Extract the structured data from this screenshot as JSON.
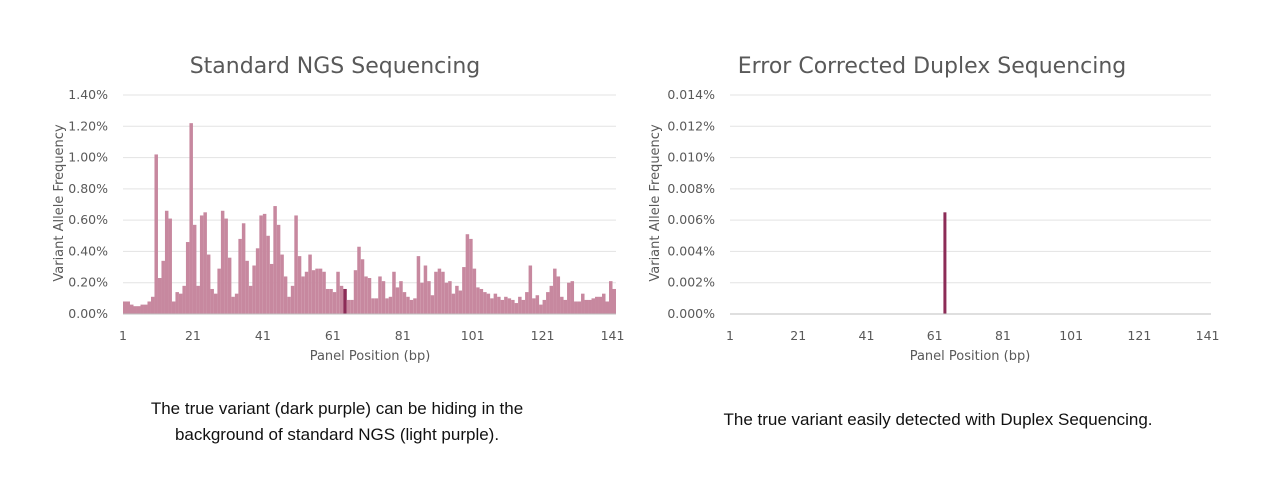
{
  "colors": {
    "background_bar": "#c7889f",
    "true_variant": "#8c2c57",
    "gridline": "#e3e3e3",
    "axis": "#bfbfbf",
    "text": "#595959"
  },
  "captions": {
    "left": [
      "The true variant (dark purple) can be hiding in the",
      "background of standard NGS (light purple)."
    ],
    "right": [
      "The true variant easily detected with Duplex Sequencing."
    ]
  },
  "chart_data": [
    {
      "type": "bar",
      "title": "Standard NGS Sequencing",
      "xlabel": "Panel Position (bp)",
      "ylabel": "Variant Allele Frequency",
      "ylim": [
        0,
        0.014
      ],
      "y_ticks": [
        "0.00%",
        "0.20%",
        "0.40%",
        "0.60%",
        "0.80%",
        "1.00%",
        "1.20%",
        "1.40%"
      ],
      "xlim": [
        1,
        141
      ],
      "x_ticks": [
        "1",
        "21",
        "41",
        "61",
        "81",
        "101",
        "121",
        "141"
      ],
      "grid": true,
      "true_variant_position": 64,
      "series": [
        {
          "x_start": 1,
          "values": [
            0.0008,
            0.0008,
            0.0006,
            0.0005,
            0.0005,
            0.0006,
            0.0006,
            0.0008,
            0.0011,
            0.0102,
            0.0023,
            0.0034,
            0.0066,
            0.0061,
            0.0008,
            0.0014,
            0.0013,
            0.0018,
            0.0046,
            0.0122,
            0.0057,
            0.0018,
            0.0063,
            0.0065,
            0.0038,
            0.0016,
            0.0013,
            0.0029,
            0.0066,
            0.0061,
            0.0036,
            0.0011,
            0.0013,
            0.0048,
            0.0058,
            0.0034,
            0.0018,
            0.0031,
            0.0042,
            0.0063,
            0.0064,
            0.005,
            0.0032,
            0.0069,
            0.0057,
            0.0038,
            0.0024,
            0.0011,
            0.0018,
            0.0063,
            0.0037,
            0.0024,
            0.0027,
            0.0038,
            0.0028,
            0.0029,
            0.0029,
            0.0027,
            0.0016,
            0.0016,
            0.0014,
            0.0027,
            0.0018,
            0.0016,
            0.0009,
            0.0009,
            0.0028,
            0.0043,
            0.0035,
            0.0024,
            0.0023,
            0.001,
            0.001,
            0.0024,
            0.0021,
            0.001,
            0.0011,
            0.0027,
            0.0017,
            0.0021,
            0.0014,
            0.0011,
            0.0009,
            0.001,
            0.0037,
            0.002,
            0.0031,
            0.0021,
            0.0012,
            0.0027,
            0.0029,
            0.0027,
            0.002,
            0.0021,
            0.0013,
            0.0018,
            0.0015,
            0.003,
            0.0051,
            0.0048,
            0.0029,
            0.0017,
            0.0016,
            0.0014,
            0.0013,
            0.001,
            0.0013,
            0.0011,
            0.0009,
            0.0011,
            0.001,
            0.0009,
            0.0007,
            0.0011,
            0.0009,
            0.0014,
            0.0031,
            0.001,
            0.0012,
            0.0006,
            0.0009,
            0.0014,
            0.0018,
            0.0029,
            0.0024,
            0.0011,
            0.0009,
            0.002,
            0.0021,
            0.0008,
            0.0008,
            0.0013,
            0.0009,
            0.0009,
            0.001,
            0.0011,
            0.0011,
            0.0013,
            0.0008,
            0.0021,
            0.0016
          ]
        }
      ]
    },
    {
      "type": "bar",
      "title": "Error Corrected Duplex Sequencing",
      "xlabel": "Panel Position (bp)",
      "ylabel": "Variant Allele Frequency",
      "ylim": [
        0,
        0.00014
      ],
      "y_ticks": [
        "0.000%",
        "0.002%",
        "0.004%",
        "0.006%",
        "0.008%",
        "0.010%",
        "0.012%",
        "0.014%"
      ],
      "xlim": [
        1,
        141
      ],
      "x_ticks": [
        "1",
        "21",
        "41",
        "61",
        "81",
        "101",
        "121",
        "141"
      ],
      "grid": true,
      "true_variant_position": 64,
      "series": [
        {
          "x": [
            64
          ],
          "values": [
            6.5e-05
          ]
        }
      ]
    }
  ]
}
